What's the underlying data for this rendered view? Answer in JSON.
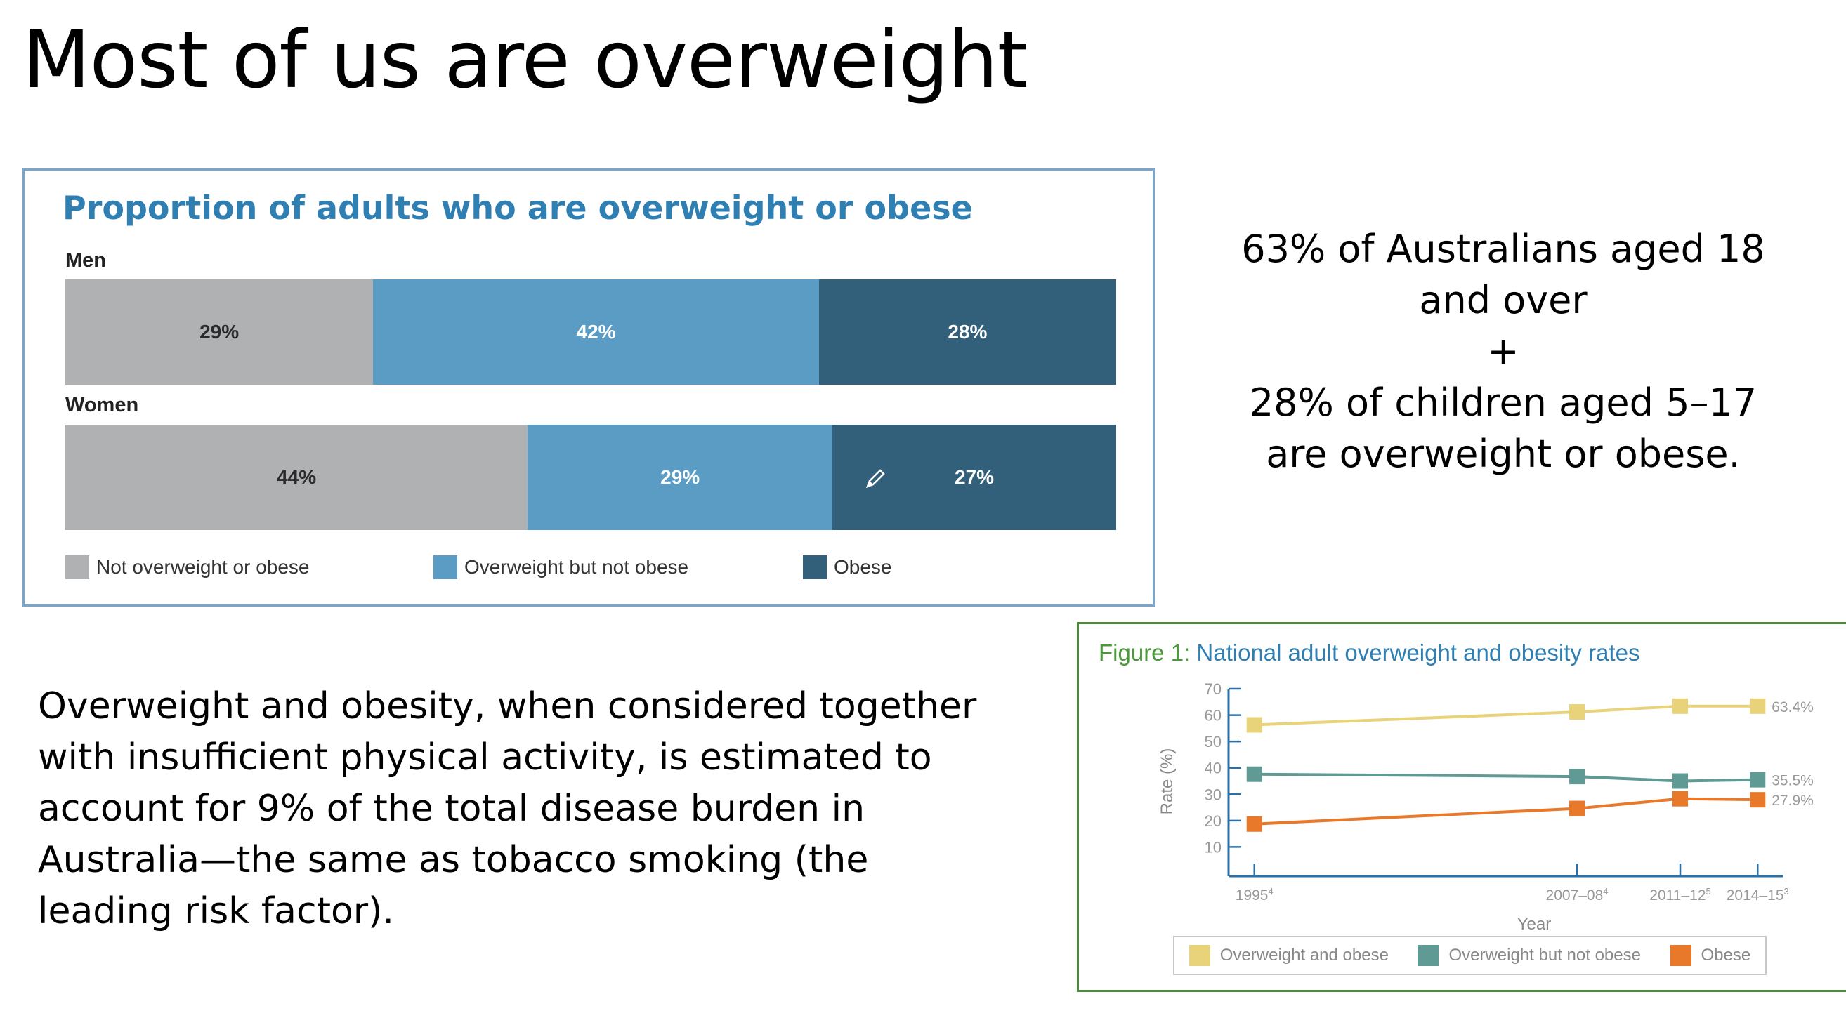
{
  "slide": {
    "title": "Most of us are overweight",
    "stat_lines": [
      "63% of Australians aged 18",
      "and over",
      "+",
      "28% of children aged 5–17",
      "are overweight or obese."
    ],
    "body_lines": [
      "Overweight and obesity, when considered together",
      "with insufficient physical activity, is estimated to",
      "account for 9% of the total disease burden in",
      "Australia—the same as tobacco smoking (the",
      "leading risk factor)."
    ]
  },
  "colors": {
    "not_overweight": "#b0b1b3",
    "overweight": "#5a9cc3",
    "obese": "#325f7a",
    "line_overweight_obese": "#e8d27a",
    "line_overweight_only": "#5f9a94",
    "line_obese": "#e8782a"
  },
  "chart_data": [
    {
      "type": "bar",
      "stacked": true,
      "orientation": "horizontal",
      "title": "Proportion of adults who are overweight or obese",
      "categories": [
        "Men",
        "Women"
      ],
      "series": [
        {
          "name": "Not overweight or obese",
          "values": [
            29,
            44
          ],
          "labels": [
            "29%",
            "44%"
          ]
        },
        {
          "name": "Overweight but not obese",
          "values": [
            42,
            29
          ],
          "labels": [
            "42%",
            "29%"
          ]
        },
        {
          "name": "Obese",
          "values": [
            28,
            27
          ],
          "labels": [
            "28%",
            "27%"
          ]
        }
      ],
      "legend": "bottom"
    },
    {
      "type": "line",
      "title_label": "Figure 1:",
      "title": "National adult overweight and obesity rates",
      "x": [
        "1995",
        "2007–08",
        "2011–12",
        "2014–15"
      ],
      "x_superscripts": [
        "4",
        "4",
        "5",
        "3"
      ],
      "x_positions": [
        1995.5,
        2008.0,
        2012.0,
        2015.0
      ],
      "xlabel": "Year",
      "ylabel": "Rate (%)",
      "ylim": [
        0,
        70
      ],
      "yticks": [
        "10",
        "20",
        "30",
        "40",
        "50",
        "60",
        "70"
      ],
      "series": [
        {
          "name": "Overweight and obese",
          "values": [
            56.3,
            61.2,
            63.4,
            63.4
          ],
          "end_label": "63.4%"
        },
        {
          "name": "Overweight but not obese",
          "values": [
            37.6,
            36.7,
            35.0,
            35.5
          ],
          "end_label": "35.5%"
        },
        {
          "name": "Obese",
          "values": [
            18.7,
            24.6,
            28.3,
            27.9
          ],
          "end_label": "27.9%"
        }
      ],
      "legend": "bottom"
    }
  ]
}
